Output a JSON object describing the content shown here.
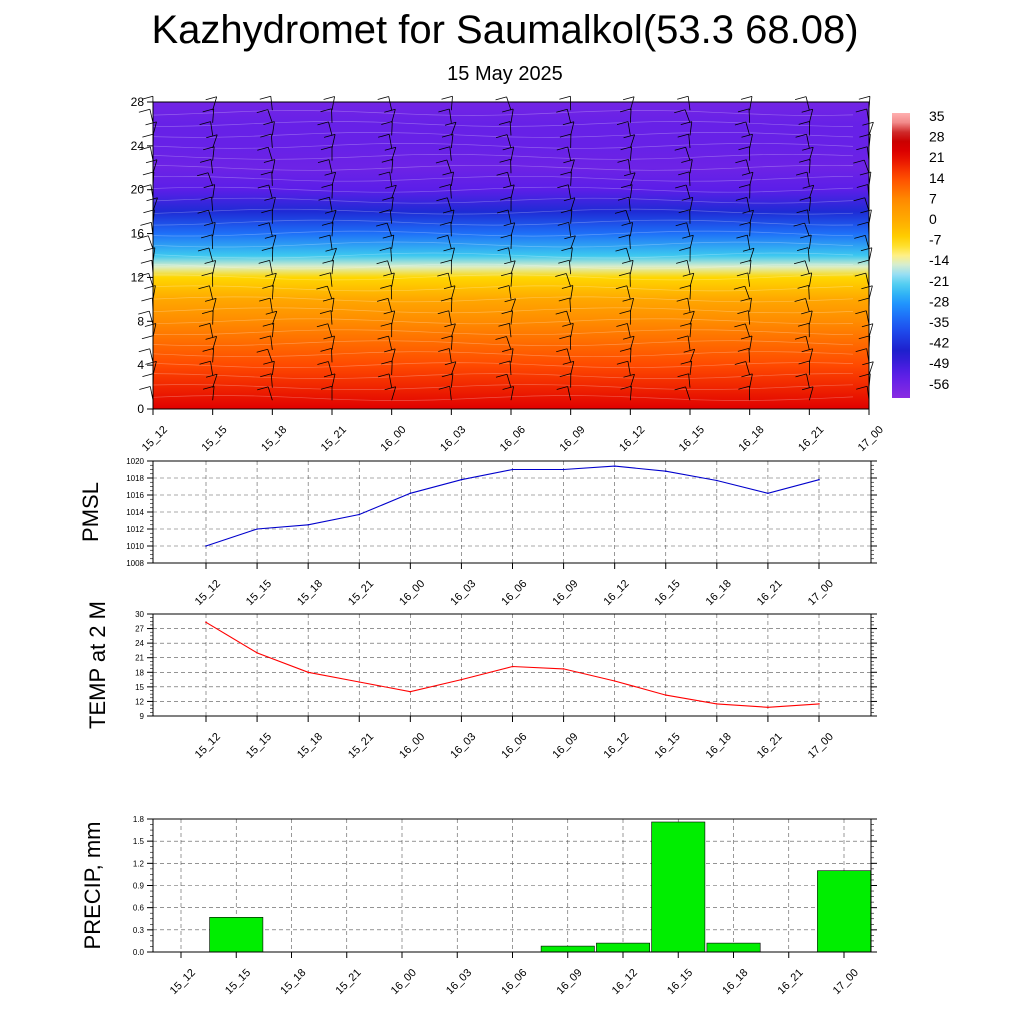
{
  "title": "Kazhydromet for Saumalkol(53.3 68.08)",
  "subtitle": "15 May 2025",
  "colors": {
    "pmsl_line": "#0000cc",
    "temp_line": "#ff0000",
    "precip_bar": "#00ee00"
  },
  "chart_data": [
    {
      "type": "heatmap",
      "name_id": "cross-section",
      "x": [
        "15_12",
        "15_15",
        "15_18",
        "15_21",
        "16_00",
        "16_03",
        "16_06",
        "16_09",
        "16_12",
        "16_15",
        "16_18",
        "16_21",
        "17_00"
      ],
      "y_ticks": [
        0,
        4,
        8,
        12,
        16,
        20,
        24,
        28
      ],
      "ylim": [
        0,
        28
      ],
      "colorbar": {
        "labels": [
          "35",
          "28",
          "21",
          "14",
          "7",
          "0",
          "-7",
          "-14",
          "-21",
          "-28",
          "-35",
          "-42",
          "-49",
          "-56"
        ],
        "range": [
          -60,
          38
        ]
      },
      "temperature_profile": {
        "levels": [
          0,
          2,
          4,
          6,
          8,
          10,
          12,
          13,
          14,
          16,
          18,
          20,
          22,
          24,
          26,
          28
        ],
        "values": [
          24,
          20,
          16,
          12,
          8,
          2,
          -6,
          -14,
          -22,
          -32,
          -42,
          -52,
          -55,
          -54,
          -54,
          -56
        ]
      },
      "grid": false
    },
    {
      "type": "line",
      "name_id": "pmsl",
      "ylabel": "PMSL",
      "categories": [
        "15_12",
        "15_15",
        "15_18",
        "15_21",
        "16_00",
        "16_03",
        "16_06",
        "16_09",
        "16_12",
        "16_15",
        "16_18",
        "16_21",
        "17_00"
      ],
      "values": [
        1010.0,
        1012.0,
        1012.5,
        1013.7,
        1016.2,
        1017.8,
        1019.0,
        1019.0,
        1019.4,
        1018.8,
        1017.7,
        1016.2,
        1017.8
      ],
      "y_ticks": [
        "1008",
        "1010",
        "1012",
        "1014",
        "1016",
        "1018",
        "1020"
      ],
      "ylim": [
        1008,
        1020
      ],
      "grid": true
    },
    {
      "type": "line",
      "name_id": "temp",
      "ylabel": "TEMP at 2 M",
      "categories": [
        "15_12",
        "15_15",
        "15_18",
        "15_21",
        "16_00",
        "16_03",
        "16_06",
        "16_09",
        "16_12",
        "16_15",
        "16_18",
        "16_21",
        "17_00"
      ],
      "values": [
        28.3,
        22.0,
        18.0,
        16.0,
        14.0,
        16.5,
        19.2,
        18.7,
        16.2,
        13.3,
        11.5,
        10.8,
        11.5
      ],
      "y_ticks": [
        "9",
        "12",
        "15",
        "18",
        "21",
        "24",
        "27",
        "30"
      ],
      "ylim": [
        9,
        30
      ],
      "grid": true
    },
    {
      "type": "bar",
      "name_id": "precip",
      "ylabel": "PRECIP, mm",
      "categories": [
        "15_12",
        "15_15",
        "15_18",
        "15_21",
        "16_00",
        "16_03",
        "16_06",
        "16_09",
        "16_12",
        "16_15",
        "16_18",
        "16_21",
        "17_00"
      ],
      "values": [
        0,
        0.47,
        0,
        0,
        0,
        0,
        0,
        0.08,
        0.12,
        1.76,
        0.12,
        0,
        1.1
      ],
      "y_ticks": [
        "0.0",
        "0.3",
        "0.6",
        "0.9",
        "1.2",
        "1.5",
        "1.8"
      ],
      "ylim": [
        0,
        1.8
      ],
      "grid": true
    }
  ]
}
